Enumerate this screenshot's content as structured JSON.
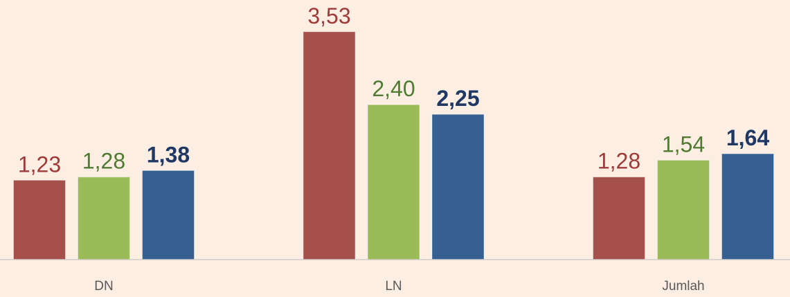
{
  "chart_data": {
    "type": "bar",
    "categories": [
      "DN",
      "LN",
      "Jumlah"
    ],
    "series": [
      {
        "color": "#a5504b",
        "label_color": "#9e3a38",
        "label_bold": false,
        "values": [
          1.23,
          3.53,
          1.28
        ],
        "value_labels": [
          "1,23",
          "3,53",
          "1,28"
        ]
      },
      {
        "color": "#9bbb59",
        "label_color": "#4e7a32",
        "label_bold": false,
        "values": [
          1.28,
          2.4,
          1.54
        ],
        "value_labels": [
          "1,28",
          "2,40",
          "1,54"
        ]
      },
      {
        "color": "#366092",
        "label_color": "#1f3864",
        "label_bold": true,
        "values": [
          1.38,
          2.25,
          1.64
        ],
        "value_labels": [
          "1,38",
          "2,25",
          "1,64"
        ]
      }
    ],
    "ylim": [
      0,
      4
    ]
  }
}
